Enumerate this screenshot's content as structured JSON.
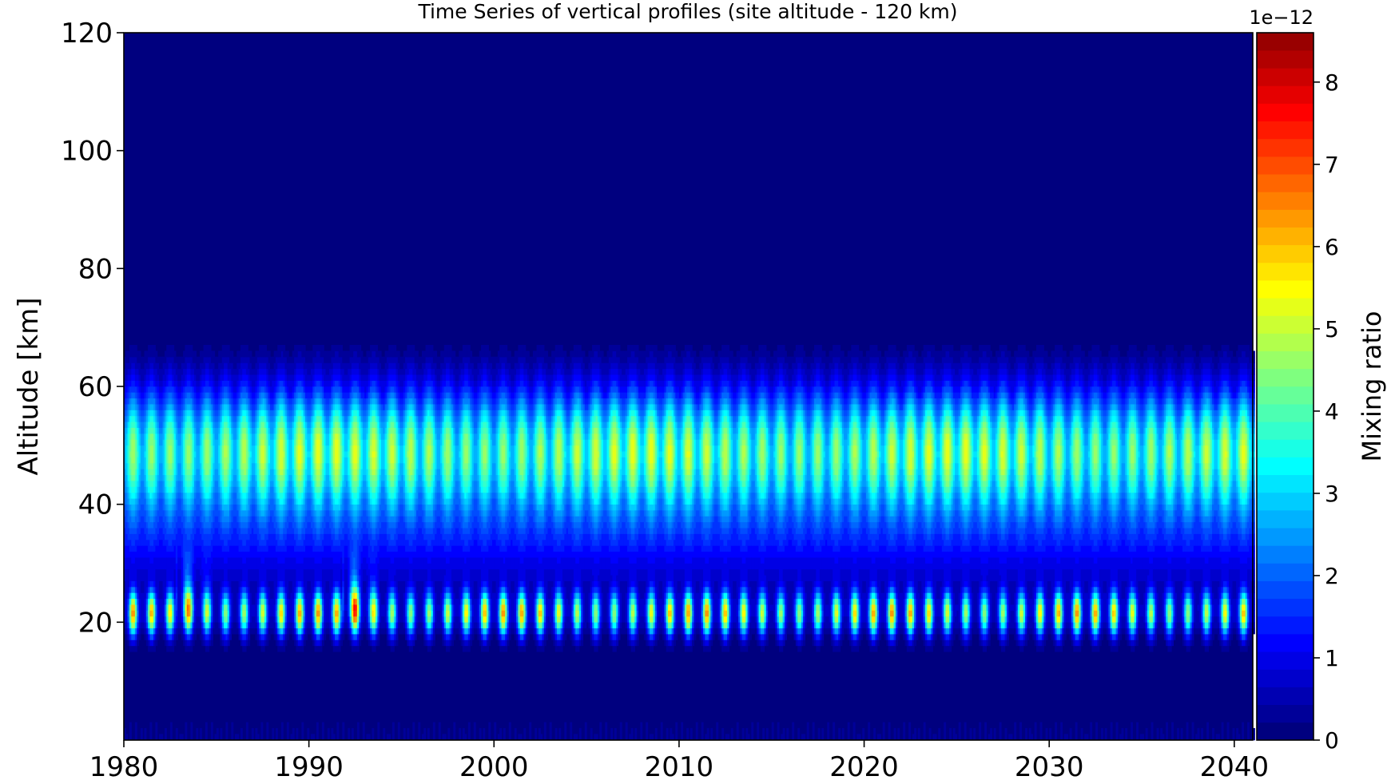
{
  "chart_data": {
    "type": "heatmap",
    "title": "Time Series of vertical profiles (site altitude - 120 km)",
    "xlabel": "",
    "ylabel": "Altitude [km]",
    "colorbar_label": "Mixing ratio",
    "colorbar_multiplier": "1e−12",
    "xlim": [
      1980,
      2041
    ],
    "ylim": [
      0,
      120
    ],
    "clim": [
      0,
      8.6
    ],
    "x_ticks": [
      1980,
      1990,
      2000,
      2010,
      2020,
      2030,
      2040
    ],
    "y_ticks": [
      20,
      40,
      60,
      80,
      100,
      120
    ],
    "colorbar_ticks": [
      0,
      1,
      2,
      3,
      4,
      5,
      6,
      7,
      8
    ],
    "colormap": [
      "#00007f",
      "#0000ff",
      "#007fff",
      "#00ffff",
      "#7fff7f",
      "#ffff00",
      "#ff7f00",
      "#ff0000",
      "#7f0000"
    ],
    "background_color": "#00007f",
    "seasonal_cycle_period_years": 1,
    "features": {
      "upper_band": {
        "center_altitude_km": 49,
        "top_altitude_km": 76,
        "bottom_altitude_km": 34,
        "peak_value": 5.3
      },
      "lower_band": {
        "center_altitude_km": 21.5,
        "top_altitude_km": 30,
        "bottom_altitude_km": 10,
        "peak_value": 6.4
      },
      "background_35km_value": 1.0,
      "surface_value": 0.4
    },
    "volcanic_events": [
      {
        "year": 1983,
        "peak_altitude_km": 24,
        "peak_value": 8.0
      },
      {
        "year": 1992,
        "peak_altitude_km": 24,
        "peak_value": 8.6
      }
    ]
  }
}
